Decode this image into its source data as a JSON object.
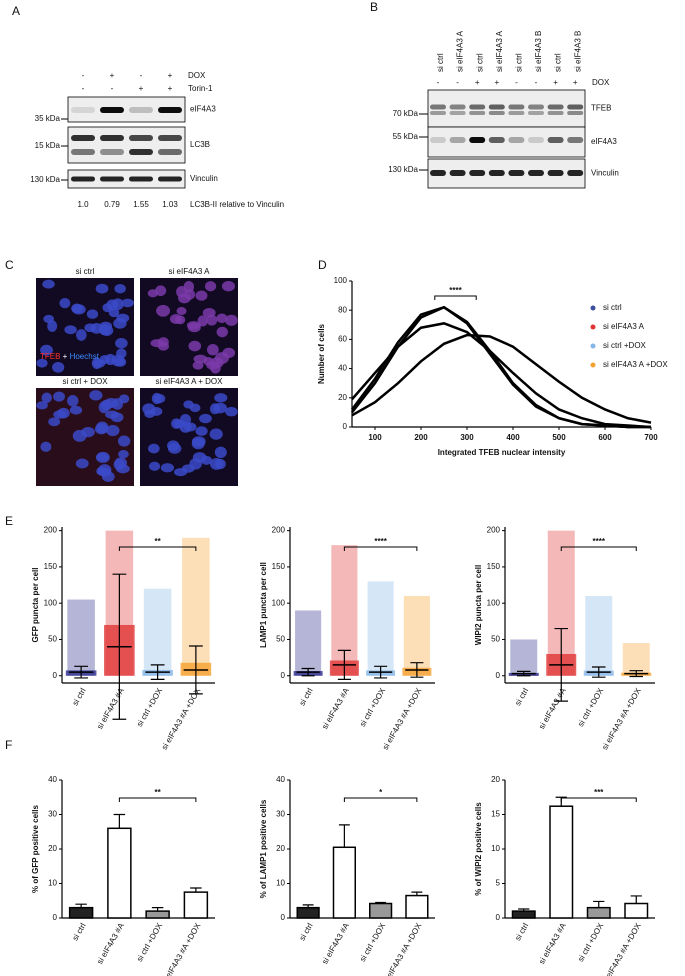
{
  "panel_labels": [
    "A",
    "B",
    "C",
    "D",
    "E",
    "F"
  ],
  "blot_a": {
    "rows": [
      {
        "name": "DOX",
        "signs": [
          "-",
          "+",
          "-",
          "+"
        ]
      },
      {
        "name": "Torin-1",
        "signs": [
          "-",
          "-",
          "+",
          "+"
        ]
      }
    ],
    "bands": [
      {
        "label": "eIF4A3",
        "kda": "35 kDa"
      },
      {
        "label": "LC3B",
        "kda": "15 kDa"
      },
      {
        "label": "Vinculin",
        "kda": "130 kDa"
      }
    ],
    "quant": [
      "1.0",
      "0.79",
      "1.55",
      "1.03"
    ],
    "quant_label": "LC3B-II relative to Vinculin"
  },
  "blot_b": {
    "lanes": [
      "si ctrl",
      "si eIF4A3 A",
      "si ctrl",
      "si eIF4A3 A",
      "si ctrl",
      "si eIF4A3 B",
      "si ctrl",
      "si eIF4A3 B"
    ],
    "dox": {
      "name": "DOX",
      "signs": [
        "-",
        "-",
        "+",
        "+",
        "-",
        "-",
        "+",
        "+"
      ]
    },
    "bands": [
      {
        "label": "TFEB",
        "kda": "70 kDa"
      },
      {
        "label": "eIF4A3",
        "kda": "55 kDa"
      },
      {
        "label": "Vinculin",
        "kda": "130 kDa"
      }
    ]
  },
  "images": {
    "titles": [
      "si ctrl",
      "si eIF4A3 A",
      "si ctrl + DOX",
      "si eIF4A3 A + DOX"
    ],
    "stain": [
      "TFEB",
      "+",
      "Hoechst"
    ]
  },
  "chart_data": [
    {
      "type": "line",
      "xlabel": "Integrated TFEB nuclear intensity",
      "ylabel": "Number of cells",
      "annotation": "****",
      "annotation_x": [
        230,
        320
      ],
      "x": [
        50,
        100,
        150,
        200,
        250,
        300,
        350,
        400,
        450,
        500,
        550,
        600,
        650,
        700
      ],
      "xlim": [
        50,
        700
      ],
      "xticks": [
        100,
        200,
        300,
        400,
        500,
        600,
        700
      ],
      "ylim": [
        0,
        100
      ],
      "yticks": [
        0,
        20,
        40,
        60,
        80,
        100
      ],
      "series": [
        {
          "name": "si ctrl",
          "color": "#3a4fa0",
          "values": [
            10,
            30,
            55,
            75,
            82,
            72,
            52,
            30,
            15,
            6,
            2,
            1,
            0,
            0
          ]
        },
        {
          "name": "si eIF4A3 A",
          "color": "#e03434",
          "values": [
            8,
            17,
            30,
            45,
            57,
            63,
            62,
            55,
            43,
            31,
            20,
            12,
            6,
            3
          ]
        },
        {
          "name": "si ctrl +DOX",
          "color": "#86b6e6",
          "values": [
            12,
            33,
            58,
            77,
            82,
            71,
            50,
            29,
            14,
            6,
            2,
            1,
            0,
            0
          ]
        },
        {
          "name": "si eIF4A3 A +DOX",
          "color": "#f5a030",
          "values": [
            19,
            37,
            55,
            68,
            71,
            65,
            52,
            37,
            23,
            12,
            6,
            2,
            1,
            0
          ]
        }
      ]
    },
    {
      "type": "dot",
      "ylabel": "GFP puncta per cell",
      "annotation": "**",
      "categories": [
        "si ctrl",
        "si eIF4A3 #A",
        "si ctrl +DOX",
        "si eIF4A3 #A +DOX"
      ],
      "colors": [
        "#2c2c8c",
        "#e03434",
        "#86b6e6",
        "#f5a030"
      ],
      "values": [
        5,
        40,
        5,
        8
      ],
      "errors": [
        8,
        100,
        10,
        33
      ],
      "max": [
        105,
        200,
        120,
        190
      ],
      "ylim": [
        -10,
        205
      ],
      "yticks": [
        0,
        50,
        100,
        150,
        200
      ]
    },
    {
      "type": "dot",
      "ylabel": "LAMP1 puncta per cell",
      "annotation": "****",
      "categories": [
        "si ctrl",
        "si eIF4A3 #A",
        "si ctrl +DOX",
        "si eIF4A3 #A +DOX"
      ],
      "colors": [
        "#2c2c8c",
        "#e03434",
        "#86b6e6",
        "#f5a030"
      ],
      "values": [
        5,
        15,
        5,
        8
      ],
      "errors": [
        5,
        20,
        8,
        10
      ],
      "max": [
        90,
        180,
        130,
        110
      ],
      "ylim": [
        -10,
        205
      ],
      "yticks": [
        0,
        50,
        100,
        150,
        200
      ]
    },
    {
      "type": "dot",
      "ylabel": "WIPI2 puncta per cell",
      "annotation": "****",
      "categories": [
        "si ctrl",
        "si eIF4A3 #A",
        "si ctrl +DOX",
        "si eIF4A3 #A +DOX"
      ],
      "colors": [
        "#2c2c8c",
        "#e03434",
        "#86b6e6",
        "#f5a030"
      ],
      "values": [
        3,
        15,
        5,
        3
      ],
      "errors": [
        3,
        50,
        7,
        4
      ],
      "max": [
        50,
        200,
        110,
        45
      ],
      "ylim": [
        -10,
        205
      ],
      "yticks": [
        0,
        50,
        100,
        150,
        200
      ]
    },
    {
      "type": "bar",
      "ylabel": "% of GFP positive cells",
      "annotation": "**",
      "categories": [
        "si ctrl",
        "si eIF4A3 #A",
        "si ctrl +DOX",
        "si eIF4A3 #A +DOX"
      ],
      "colors": [
        "#222222",
        "#ffffff",
        "#999999",
        "#ffffff"
      ],
      "values": [
        3,
        26,
        2,
        7.5
      ],
      "errors": [
        1,
        4,
        1,
        1.2
      ],
      "ylim": [
        0,
        40
      ],
      "yticks": [
        0,
        10,
        20,
        30,
        40
      ]
    },
    {
      "type": "bar",
      "ylabel": "% of LAMP1 positive cells",
      "annotation": "*",
      "categories": [
        "si ctrl",
        "si eIF4A3 #A",
        "si ctrl +DOX",
        "si eIF4A3 #A +DOX"
      ],
      "colors": [
        "#222222",
        "#ffffff",
        "#999999",
        "#ffffff"
      ],
      "values": [
        3,
        20.5,
        4.2,
        6.5
      ],
      "errors": [
        0.8,
        6.5,
        0.3,
        1
      ],
      "ylim": [
        0,
        40
      ],
      "yticks": [
        0,
        10,
        20,
        30,
        40
      ]
    },
    {
      "type": "bar",
      "ylabel": "% of WIPI2 positive cells",
      "annotation": "***",
      "categories": [
        "si ctrl",
        "si eIF4A3 #A",
        "si ctrl +DOX",
        "si eIF4A3 #A +DOX"
      ],
      "colors": [
        "#222222",
        "#ffffff",
        "#999999",
        "#ffffff"
      ],
      "values": [
        1,
        16.2,
        1.5,
        2.1
      ],
      "errors": [
        0.3,
        1.3,
        0.9,
        1.1
      ],
      "ylim": [
        0,
        20
      ],
      "yticks": [
        0,
        5,
        10,
        15,
        20
      ]
    }
  ]
}
